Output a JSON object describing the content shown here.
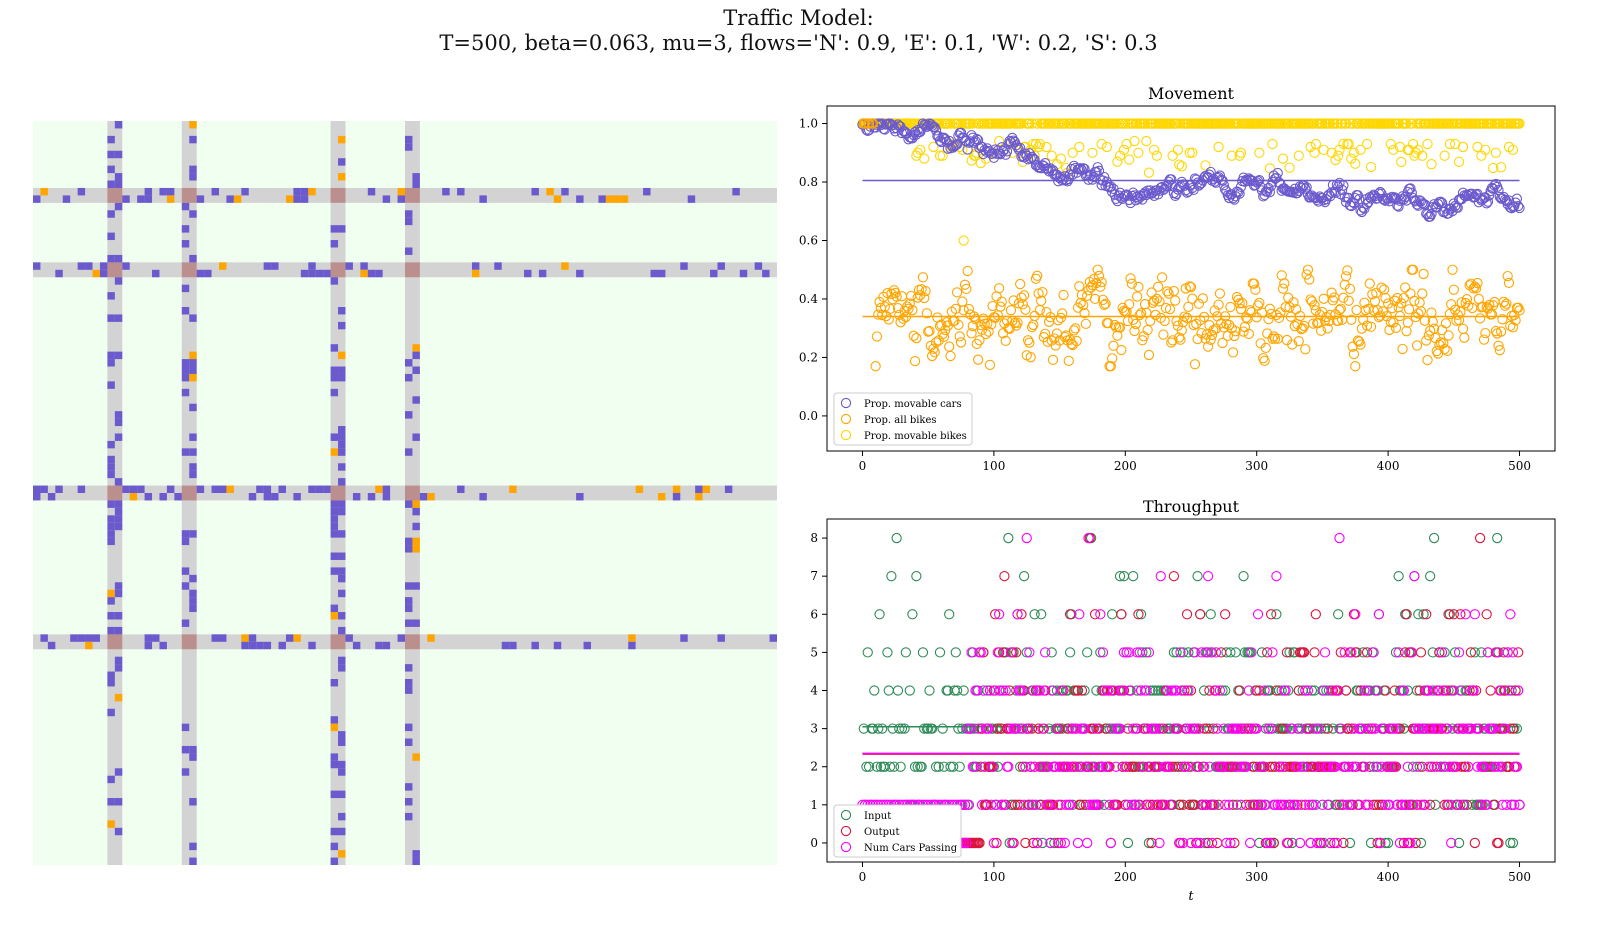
{
  "figure": {
    "title_line1": "Traffic Model:",
    "title_line2": "T=500, beta=0.063, mu=3, flows='N': 0.9, 'E': 0.1, 'W': 0.2, 'S': 0.3"
  },
  "colors": {
    "background": "#f0fff0",
    "road": "#d3d3d3",
    "intersection": "#bc8f8f",
    "car": "#6a5acd",
    "bike": "#ffa500",
    "movable_bikes": "#ffd700",
    "input": "#2e8b57",
    "output": "#dc143c",
    "passing": "#ff00ff"
  },
  "grid": {
    "n": 100,
    "vertical_roads": [
      10,
      20,
      40,
      50
    ],
    "horizontal_roads": [
      9,
      19,
      49,
      69
    ]
  },
  "chart_data": [
    {
      "type": "scatter",
      "title": "Movement",
      "xlabel": "",
      "ylabel": "",
      "xlim": [
        -27,
        527
      ],
      "ylim": [
        -0.12,
        1.06
      ],
      "xticks": [
        0,
        100,
        200,
        300,
        400,
        500
      ],
      "yticks": [
        0.0,
        0.2,
        0.4,
        0.6,
        0.8,
        1.0
      ],
      "ytick_labels": [
        "0.0",
        "0.2",
        "0.4",
        "0.6",
        "0.8",
        "1.0"
      ],
      "legend": "lower-left",
      "series": [
        {
          "name": "Prop. movable cars",
          "color": "#6a5acd",
          "trend": "random-walk",
          "start": 1.0,
          "mid": 0.8,
          "end": 0.72,
          "range": [
            0.66,
            1.0
          ],
          "mean_line": 0.805
        },
        {
          "name": "Prop. all bikes",
          "color": "#ffa500",
          "trend": "noise",
          "center": 0.34,
          "range": [
            0.17,
            0.5
          ],
          "mean_line": 0.34
        },
        {
          "name": "Prop. movable bikes",
          "color": "#ffd700",
          "trend": "mostly-one",
          "center": 1.0,
          "range": [
            0.6,
            1.0
          ],
          "mean_line": 1.0
        }
      ]
    },
    {
      "type": "scatter",
      "title": "Throughput",
      "xlabel": "t",
      "ylabel": "",
      "xlim": [
        -27,
        527
      ],
      "ylim": [
        -0.5,
        8.5
      ],
      "xticks": [
        0,
        100,
        200,
        300,
        400,
        500
      ],
      "yticks": [
        0,
        1,
        2,
        3,
        4,
        5,
        6,
        7,
        8
      ],
      "ytick_labels": [
        "0",
        "1",
        "2",
        "3",
        "4",
        "5",
        "6",
        "7",
        "8"
      ],
      "legend": "lower-left",
      "series": [
        {
          "name": "Input",
          "color": "#2e8b57",
          "mean_line": 3.05,
          "values_range": [
            0,
            8
          ]
        },
        {
          "name": "Output",
          "color": "#dc143c",
          "mean_line": 2.33,
          "values_range": [
            0,
            8
          ]
        },
        {
          "name": "Num Cars Passing",
          "color": "#ff00ff",
          "mean_line": 2.33,
          "values_range": [
            0,
            8
          ]
        }
      ]
    }
  ]
}
